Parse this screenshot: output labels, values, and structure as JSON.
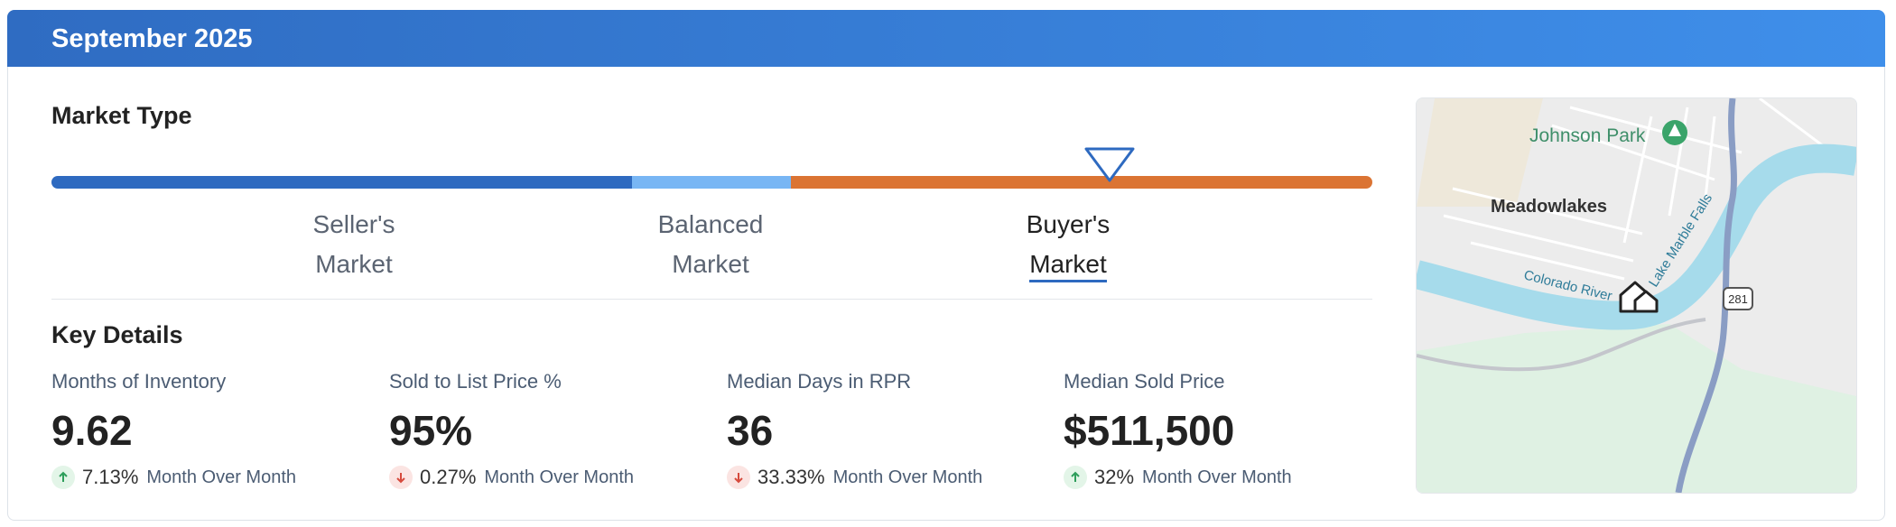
{
  "header": {
    "title": "September 2025"
  },
  "market_type": {
    "title": "Market Type",
    "labels": [
      {
        "line1": "Seller's",
        "line2": "Market"
      },
      {
        "line1": "Balanced",
        "line2": "Market"
      },
      {
        "line1": "Buyer's",
        "line2": "Market"
      }
    ],
    "selected": 2
  },
  "key_details": {
    "title": "Key Details",
    "metrics": [
      {
        "label": "Months of Inventory",
        "value": "9.62",
        "change": "7.13%",
        "direction": "up",
        "period": "Month Over Month"
      },
      {
        "label": "Sold to List Price %",
        "value": "95%",
        "change": "0.27%",
        "direction": "down",
        "period": "Month Over Month"
      },
      {
        "label": "Median Days in RPR",
        "value": "36",
        "change": "33.33%",
        "direction": "down",
        "period": "Month Over Month"
      },
      {
        "label": "Median Sold Price",
        "value": "$511,500",
        "change": "32%",
        "direction": "up",
        "period": "Month Over Month"
      }
    ]
  },
  "map": {
    "labels": {
      "park": "Johnson Park",
      "town": "Meadowlakes",
      "river": "Colorado River",
      "lake": "Lake Marble Falls",
      "highway": "281"
    }
  }
}
